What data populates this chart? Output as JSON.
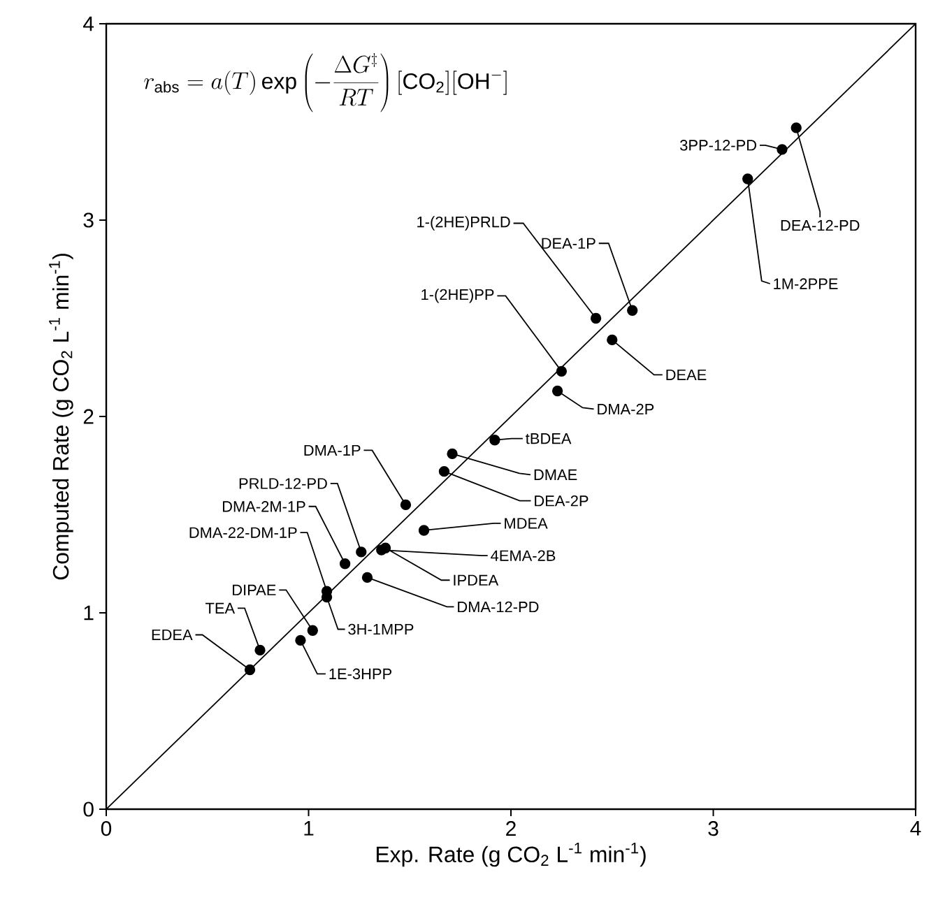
{
  "chart_data": {
    "type": "scatter",
    "xlabel": "Exp. Rate (g CO$_{2}$ L$^{-1}$ min$^{-1}$)",
    "ylabel": "Computed Rate (g CO$_{2}$ L$^{-1}$ min$^{-1}$)",
    "xlim": [
      0,
      4
    ],
    "ylim": [
      0,
      4
    ],
    "xticks": [
      0,
      1,
      2,
      3,
      4
    ],
    "yticks": [
      0,
      1,
      2,
      3,
      4
    ],
    "marker": "circle",
    "grid": false,
    "series": [
      {
        "color": "#000000",
        "x": [
          3.34,
          3.41,
          3.17,
          2.6,
          2.42,
          2.5,
          2.25,
          2.23,
          1.92,
          1.71,
          1.67,
          1.48,
          1.57,
          1.36,
          1.38,
          1.26,
          1.18,
          1.29,
          1.09,
          1.09,
          1.02,
          0.96,
          0.76,
          0.71
        ],
        "values": [
          3.36,
          3.47,
          3.21,
          2.54,
          2.5,
          2.39,
          2.23,
          2.13,
          1.88,
          1.81,
          1.72,
          1.55,
          1.42,
          1.32,
          1.33,
          1.31,
          1.25,
          1.18,
          1.11,
          1.08,
          0.91,
          0.86,
          0.81,
          0.71
        ]
      },
      {
        "type": "line",
        "color": "#000000",
        "marker": "none",
        "x": [
          0,
          4
        ],
        "values": [
          0,
          4
        ]
      }
    ],
    "annotations": [
      "r_{\\mathrm{abs}} = a(T)\\exp\\left(-\\frac{\\Delta G^{\\ddagger}}{RT}\\right)[\\mathrm{CO_2}][\\mathrm{OH^{-}}]",
      {
        "text": "3PP-12-PD",
        "x": 3.34,
        "y": 3.36
      },
      {
        "text": "DEA-12-PD",
        "x": 3.41,
        "y": 3.47
      },
      {
        "text": "1M-2PPE",
        "x": 3.17,
        "y": 3.21
      },
      {
        "text": "DEA-1P",
        "x": 2.6,
        "y": 2.54
      },
      {
        "text": "1-(2HE)PRLD",
        "x": 2.42,
        "y": 2.5
      },
      {
        "text": "DEAE",
        "x": 2.5,
        "y": 2.39
      },
      {
        "text": "1-(2HE)PP",
        "x": 2.25,
        "y": 2.23
      },
      {
        "text": "DMA-2P",
        "x": 2.23,
        "y": 2.13
      },
      {
        "text": "tBDEA",
        "x": 1.92,
        "y": 1.88
      },
      {
        "text": "DMAE",
        "x": 1.71,
        "y": 1.81
      },
      {
        "text": "DEA-2P",
        "x": 1.67,
        "y": 1.72
      },
      {
        "text": "DMA-1P",
        "x": 1.48,
        "y": 1.55
      },
      {
        "text": "MDEA",
        "x": 1.57,
        "y": 1.42
      },
      {
        "text": "4EMA-2B",
        "x": 1.36,
        "y": 1.32
      },
      {
        "text": "IPDEA",
        "x": 1.38,
        "y": 1.33
      },
      {
        "text": "PRLD-12-PD",
        "x": 1.26,
        "y": 1.31
      },
      {
        "text": "DMA-2M-1P",
        "x": 1.18,
        "y": 1.25
      },
      {
        "text": "DMA-12-PD",
        "x": 1.29,
        "y": 1.18
      },
      {
        "text": "DMA-22-DM-1P",
        "x": 1.09,
        "y": 1.11
      },
      {
        "text": "3H-1MPP",
        "x": 1.09,
        "y": 1.08
      },
      {
        "text": "DIPAE",
        "x": 1.02,
        "y": 0.91
      },
      {
        "text": "1E-3HPP",
        "x": 0.96,
        "y": 0.86
      },
      {
        "text": "TEA",
        "x": 0.76,
        "y": 0.81
      },
      {
        "text": "EDEA",
        "x": 0.71,
        "y": 0.71
      }
    ]
  }
}
